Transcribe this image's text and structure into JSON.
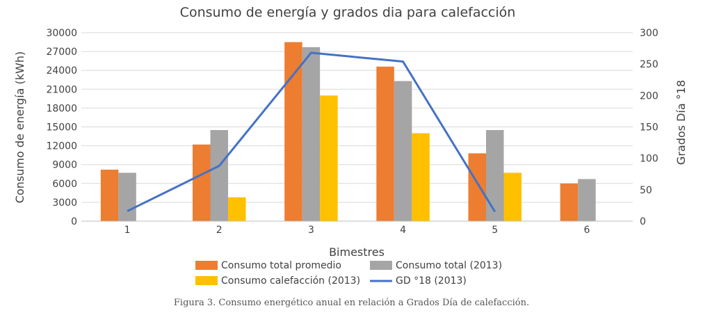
{
  "chart_data": {
    "type": "bar",
    "title": "Consumo de energía y grados dia para calefacción",
    "xlabel": "Bimestres",
    "ylabel": "Consumo de energía (kWh)",
    "y2label": "Grados Día °18",
    "categories": [
      "1",
      "2",
      "3",
      "4",
      "5",
      "6"
    ],
    "ylim": [
      0,
      30000
    ],
    "yticks": [
      "0",
      "3000",
      "6000",
      "9000",
      "12000",
      "15000",
      "18000",
      "21000",
      "24000",
      "27000",
      "30000"
    ],
    "y2lim": [
      0,
      300
    ],
    "y2ticks": [
      "0",
      "50",
      "100",
      "150",
      "200",
      "250",
      "300"
    ],
    "grid": true,
    "legend_position": "bottom",
    "series": [
      {
        "name": "Consumo total promedio",
        "kind": "bar",
        "axis": "left",
        "color": "#ED7D31",
        "values": [
          8200,
          12200,
          28500,
          24600,
          10800,
          6000
        ]
      },
      {
        "name": "Consumo total (2013)",
        "kind": "bar",
        "axis": "left",
        "color": "#A5A5A5",
        "values": [
          7700,
          14500,
          27700,
          22300,
          14500,
          6700
        ]
      },
      {
        "name": "Consumo calefacción (2013)",
        "kind": "bar",
        "axis": "left",
        "color": "#FFC000",
        "values": [
          null,
          3800,
          20000,
          14000,
          7700,
          null
        ]
      },
      {
        "name": "GD °18 (2013)",
        "kind": "line",
        "axis": "right",
        "color": "#4472C4",
        "values": [
          16,
          88,
          268,
          254,
          15,
          null
        ]
      }
    ]
  },
  "caption": "Figura 3. Consumo energético anual en relación a Grados Día de calefacción."
}
